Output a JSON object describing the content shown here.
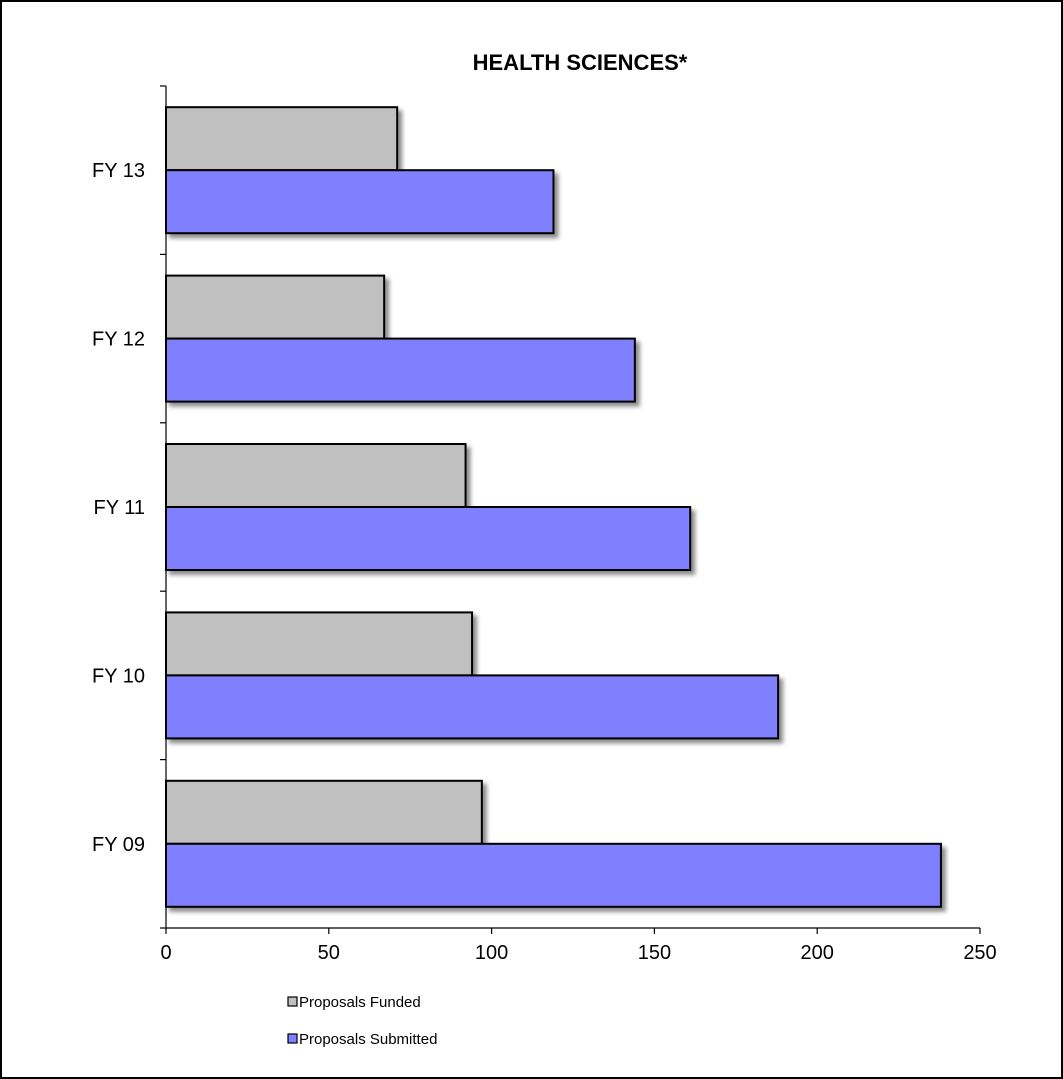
{
  "chart_data": {
    "type": "bar",
    "orientation": "horizontal",
    "title": "HEALTH SCIENCES*",
    "xlabel": "",
    "ylabel": "",
    "categories": [
      "FY 13",
      "FY 12",
      "FY 11",
      "FY 10",
      "FY 09"
    ],
    "series": [
      {
        "name": "Proposals Funded",
        "color": "#c0c0c0",
        "values": [
          71,
          67,
          92,
          94,
          97
        ]
      },
      {
        "name": "Proposals Submitted",
        "color": "#8080ff",
        "values": [
          119,
          144,
          161,
          188,
          238
        ]
      }
    ],
    "xlim": [
      0,
      250
    ],
    "xticks": [
      "0",
      "50",
      "100",
      "150",
      "200",
      "250"
    ],
    "grid": false,
    "legend_position": "bottom-left",
    "bar_shadow": true
  }
}
